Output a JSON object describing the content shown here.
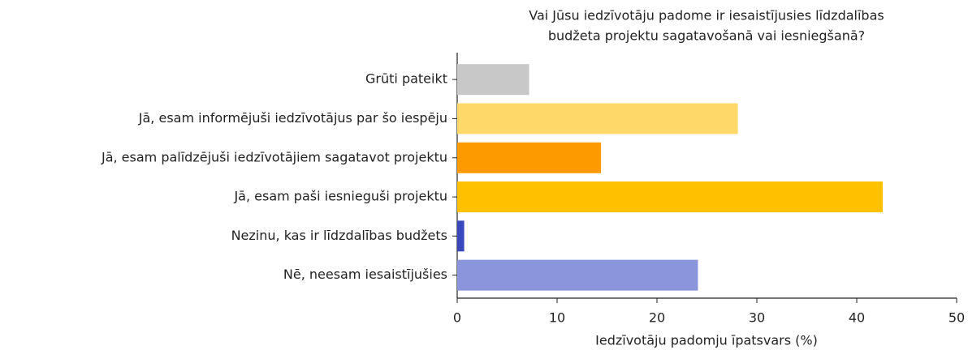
{
  "chart_data": {
    "type": "barh",
    "title": [
      "Vai Jūsu iedzīvotāju padome ir iesaistījusies līdzdalības",
      "budžeta projektu sagatavošanā vai iesniegšanā?"
    ],
    "xlabel": "Iedzīvotāju padomju īpatsvars (%)",
    "categories": [
      "Grūti pateikt",
      "Jā, esam informējuši iedzīvotājus par šo iespēju",
      "Jā, esam palīdzējuši iedzīvotājiem sagatavot projektu",
      "Jā, esam paši iesnieguši projektu",
      "Nezinu, kas ir līdzdalības budžets",
      "Nē, neesam iesaistījušies"
    ],
    "values": [
      7.2,
      28.1,
      14.4,
      42.6,
      0.7,
      24.1
    ],
    "colors": [
      "#c8c8c8",
      "#fed96a",
      "#fd9a00",
      "#ffc000",
      "#3a48bd",
      "#8a95dc"
    ],
    "xlim": [
      0,
      50
    ],
    "xticks": [
      0,
      10,
      20,
      30,
      40,
      50
    ]
  }
}
